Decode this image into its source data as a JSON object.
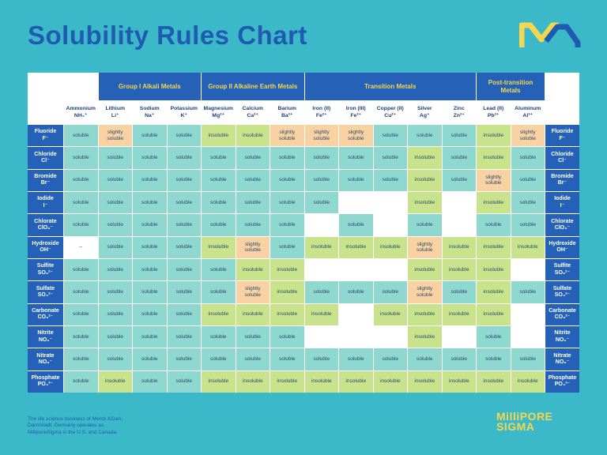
{
  "header": {
    "title": "Solubility Rules Chart"
  },
  "table": {
    "colors": {
      "soluble": "#8ed8cf",
      "insoluble": "#c9e38d",
      "slightly soluble": "#f9d2a4",
      "--": "#ffffff"
    },
    "columns": [
      {
        "cations": [
          {
            "name": "Ammonium",
            "formula": "NH₄⁺"
          }
        ]
      },
      {
        "group": "Group I Alkali Metals",
        "cations": [
          {
            "name": "Lithium",
            "formula": "Li⁺"
          },
          {
            "name": "Sodium",
            "formula": "Na⁺"
          },
          {
            "name": "Potassium",
            "formula": "K⁺"
          }
        ]
      },
      {
        "group": "Group II Alkaline Earth Metals",
        "cations": [
          {
            "name": "Magnesium",
            "formula": "Mg²⁺"
          },
          {
            "name": "Calcium",
            "formula": "Ca²⁺"
          },
          {
            "name": "Barium",
            "formula": "Ba²⁺"
          }
        ]
      },
      {
        "group": "Transition Metals",
        "cations": [
          {
            "name": "Iron (II)",
            "formula": "Fe²⁺"
          },
          {
            "name": "Iron (III)",
            "formula": "Fe³⁺"
          },
          {
            "name": "Copper (II)",
            "formula": "Cu²⁺"
          },
          {
            "name": "Silver",
            "formula": "Ag⁺"
          },
          {
            "name": "Zinc",
            "formula": "Zn²⁺"
          }
        ]
      },
      {
        "group": "Post-transition Metals",
        "cations": [
          {
            "name": "Lead (II)",
            "formula": "Pb²⁺"
          },
          {
            "name": "Aluminum",
            "formula": "Al³⁺"
          }
        ]
      }
    ],
    "rows": [
      {
        "anion": "Fluoride",
        "formula": "F⁻",
        "cells": [
          "soluble",
          "slightly soluble",
          "soluble",
          "soluble",
          "insoluble",
          "insoluble",
          "slightly soluble",
          "slightly soluble",
          "slightly soluble",
          "soluble",
          "soluble",
          "soluble",
          "insoluble",
          "slightly soluble"
        ]
      },
      {
        "anion": "Chloride",
        "formula": "Cl⁻",
        "cells": [
          "soluble",
          "soluble",
          "soluble",
          "soluble",
          "soluble",
          "soluble",
          "soluble",
          "soluble",
          "soluble",
          "soluble",
          "insoluble",
          "soluble",
          "insoluble",
          "soluble"
        ]
      },
      {
        "anion": "Bromide",
        "formula": "Br⁻",
        "cells": [
          "soluble",
          "soluble",
          "soluble",
          "soluble",
          "soluble",
          "soluble",
          "soluble",
          "soluble",
          "soluble",
          "soluble",
          "insoluble",
          "soluble",
          "slightly soluble",
          "soluble"
        ]
      },
      {
        "anion": "Iodide",
        "formula": "I⁻",
        "cells": [
          "soluble",
          "soluble",
          "soluble",
          "soluble",
          "soluble",
          "soluble",
          "soluble",
          "soluble",
          null,
          null,
          "insoluble",
          null,
          "insoluble",
          "soluble"
        ]
      },
      {
        "anion": "Chlorate",
        "formula": "ClO₃⁻",
        "cells": [
          "soluble",
          "soluble",
          "soluble",
          "soluble",
          "soluble",
          "soluble",
          "soluble",
          null,
          "soluble",
          null,
          "soluble",
          null,
          "soluble",
          "soluble"
        ]
      },
      {
        "anion": "Hydroxide",
        "formula": "OH⁻",
        "cells": [
          "--",
          "soluble",
          "soluble",
          "soluble",
          "insoluble",
          "slightly soluble",
          "soluble",
          "insoluble",
          "insoluble",
          "insoluble",
          "slightly soluble",
          "insoluble",
          "insoluble",
          "insoluble"
        ]
      },
      {
        "anion": "Sulfite",
        "formula": "SO₃²⁻",
        "cells": [
          "soluble",
          "soluble",
          "soluble",
          "soluble",
          "soluble",
          "insoluble",
          "insoluble",
          null,
          null,
          null,
          "insoluble",
          "insoluble",
          "insoluble",
          null
        ]
      },
      {
        "anion": "Sulfate",
        "formula": "SO₄²⁻",
        "cells": [
          "soluble",
          "soluble",
          "soluble",
          "soluble",
          "soluble",
          "slightly soluble",
          "insoluble",
          "soluble",
          "soluble",
          "soluble",
          "slightly soluble",
          "soluble",
          "insoluble",
          "soluble"
        ]
      },
      {
        "anion": "Carbonate",
        "formula": "CO₃²⁻",
        "cells": [
          "soluble",
          "soluble",
          "soluble",
          "soluble",
          "insoluble",
          "insoluble",
          "insoluble",
          "insoluble",
          null,
          "insoluble",
          "insoluble",
          "insoluble",
          "insoluble",
          null
        ]
      },
      {
        "anion": "Nitrite",
        "formula": "NO₂⁻",
        "cells": [
          "soluble",
          "soluble",
          "soluble",
          "soluble",
          "soluble",
          "soluble",
          "soluble",
          null,
          null,
          null,
          "insoluble",
          null,
          "soluble",
          null
        ]
      },
      {
        "anion": "Nitrate",
        "formula": "NO₃⁻",
        "cells": [
          "soluble",
          "soluble",
          "soluble",
          "soluble",
          "soluble",
          "soluble",
          "soluble",
          "soluble",
          "soluble",
          "soluble",
          "soluble",
          "soluble",
          "soluble",
          "soluble"
        ]
      },
      {
        "anion": "Phosphate",
        "formula": "PO₄³⁻",
        "cells": [
          "soluble",
          "insoluble",
          "soluble",
          "soluble",
          "insoluble",
          "insoluble",
          "insoluble",
          "insoluble",
          "insoluble",
          "insoluble",
          "insoluble",
          "insoluble",
          "insoluble",
          "insoluble"
        ]
      }
    ]
  },
  "footer": {
    "note": "The life science business of Merck KGaA, Darmstadt, Germany operates as MilliporeSigma in the U.S. and Canada.",
    "logo": [
      "MilliPORE",
      "SIGMA"
    ]
  }
}
